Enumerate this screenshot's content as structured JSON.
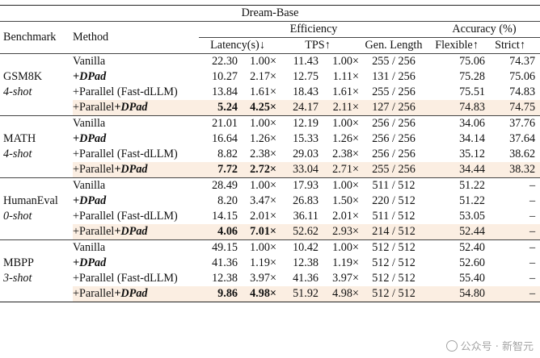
{
  "title": "Dream-Base",
  "headers": {
    "benchmark": "Benchmark",
    "method": "Method",
    "efficiency": "Efficiency",
    "accuracy": "Accuracy (%)",
    "latency": "Latency(s)↓",
    "tps": "TPS↑",
    "gen_length": "Gen. Length",
    "flexible": "Flexible↑",
    "strict": "Strict↑"
  },
  "groups": [
    {
      "benchmark": "GSM8K",
      "shot": "4-shot",
      "rows": [
        {
          "method": "Vanilla",
          "latency": "22.30",
          "lat_speedup": "1.00×",
          "tps": "11.43",
          "tps_speedup": "1.00×",
          "gen_length": "255 / 256",
          "flexible": "75.06",
          "strict": "74.37"
        },
        {
          "method_prefix": "",
          "method_emph": "+DPad",
          "latency": "10.27",
          "lat_speedup": "2.17×",
          "tps": "12.75",
          "tps_speedup": "1.11×",
          "gen_length": "131 / 256",
          "flexible": "75.28",
          "strict": "75.06"
        },
        {
          "method": "+Parallel (Fast-dLLM)",
          "latency": "13.84",
          "lat_speedup": "1.61×",
          "tps": "18.43",
          "tps_speedup": "1.61×",
          "gen_length": "255 / 256",
          "flexible": "75.51",
          "strict": "74.83"
        },
        {
          "method_prefix": "+Parallel",
          "method_emph": "+DPad",
          "latency": "5.24",
          "lat_speedup": "4.25×",
          "tps": "24.17",
          "tps_speedup": "2.11×",
          "gen_length": "127 / 256",
          "flexible": "74.83",
          "strict": "74.75"
        }
      ]
    },
    {
      "benchmark": "MATH",
      "shot": "4-shot",
      "rows": [
        {
          "method": "Vanilla",
          "latency": "21.01",
          "lat_speedup": "1.00×",
          "tps": "12.19",
          "tps_speedup": "1.00×",
          "gen_length": "256 / 256",
          "flexible": "34.06",
          "strict": "37.76"
        },
        {
          "method_prefix": "",
          "method_emph": "+DPad",
          "latency": "16.64",
          "lat_speedup": "1.26×",
          "tps": "15.33",
          "tps_speedup": "1.26×",
          "gen_length": "256 / 256",
          "flexible": "34.14",
          "strict": "37.64"
        },
        {
          "method": "+Parallel (Fast-dLLM)",
          "latency": "8.82",
          "lat_speedup": "2.38×",
          "tps": "29.03",
          "tps_speedup": "2.38×",
          "gen_length": "256 / 256",
          "flexible": "35.12",
          "strict": "38.62"
        },
        {
          "method_prefix": "+Parallel",
          "method_emph": "+DPad",
          "latency": "7.72",
          "lat_speedup": "2.72×",
          "tps": "33.04",
          "tps_speedup": "2.71×",
          "gen_length": "255 / 256",
          "flexible": "34.44",
          "strict": "38.32"
        }
      ]
    },
    {
      "benchmark": "HumanEval",
      "shot": "0-shot",
      "rows": [
        {
          "method": "Vanilla",
          "latency": "28.49",
          "lat_speedup": "1.00×",
          "tps": "17.93",
          "tps_speedup": "1.00×",
          "gen_length": "511 / 512",
          "flexible": "51.22",
          "strict": "–"
        },
        {
          "method_prefix": "",
          "method_emph": "+DPad",
          "latency": "8.20",
          "lat_speedup": "3.47×",
          "tps": "26.83",
          "tps_speedup": "1.50×",
          "gen_length": "220 / 512",
          "flexible": "51.22",
          "strict": "–"
        },
        {
          "method": "+Parallel (Fast-dLLM)",
          "latency": "14.15",
          "lat_speedup": "2.01×",
          "tps": "36.11",
          "tps_speedup": "2.01×",
          "gen_length": "511 / 512",
          "flexible": "53.05",
          "strict": "–"
        },
        {
          "method_prefix": "+Parallel",
          "method_emph": "+DPad",
          "latency": "4.06",
          "lat_speedup": "7.01×",
          "tps": "52.62",
          "tps_speedup": "2.93×",
          "gen_length": "214 / 512",
          "flexible": "52.44",
          "strict": "–"
        }
      ]
    },
    {
      "benchmark": "MBPP",
      "shot": "3-shot",
      "rows": [
        {
          "method": "Vanilla",
          "latency": "49.15",
          "lat_speedup": "1.00×",
          "tps": "10.42",
          "tps_speedup": "1.00×",
          "gen_length": "512 / 512",
          "flexible": "52.40",
          "strict": "–"
        },
        {
          "method_prefix": "",
          "method_emph": "+DPad",
          "latency": "41.36",
          "lat_speedup": "1.19×",
          "tps": "12.38",
          "tps_speedup": "1.19×",
          "gen_length": "512 / 512",
          "flexible": "52.60",
          "strict": "–"
        },
        {
          "method": "+Parallel (Fast-dLLM)",
          "latency": "12.38",
          "lat_speedup": "3.97×",
          "tps": "41.36",
          "tps_speedup": "3.97×",
          "gen_length": "512 / 512",
          "flexible": "55.40",
          "strict": "–"
        },
        {
          "method_prefix": "+Parallel",
          "method_emph": "+DPad",
          "latency": "9.86",
          "lat_speedup": "4.98×",
          "tps": "51.92",
          "tps_speedup": "4.98×",
          "gen_length": "512 / 512",
          "flexible": "54.80",
          "strict": "–"
        }
      ]
    }
  ],
  "watermark": "公众号 · 新智元"
}
